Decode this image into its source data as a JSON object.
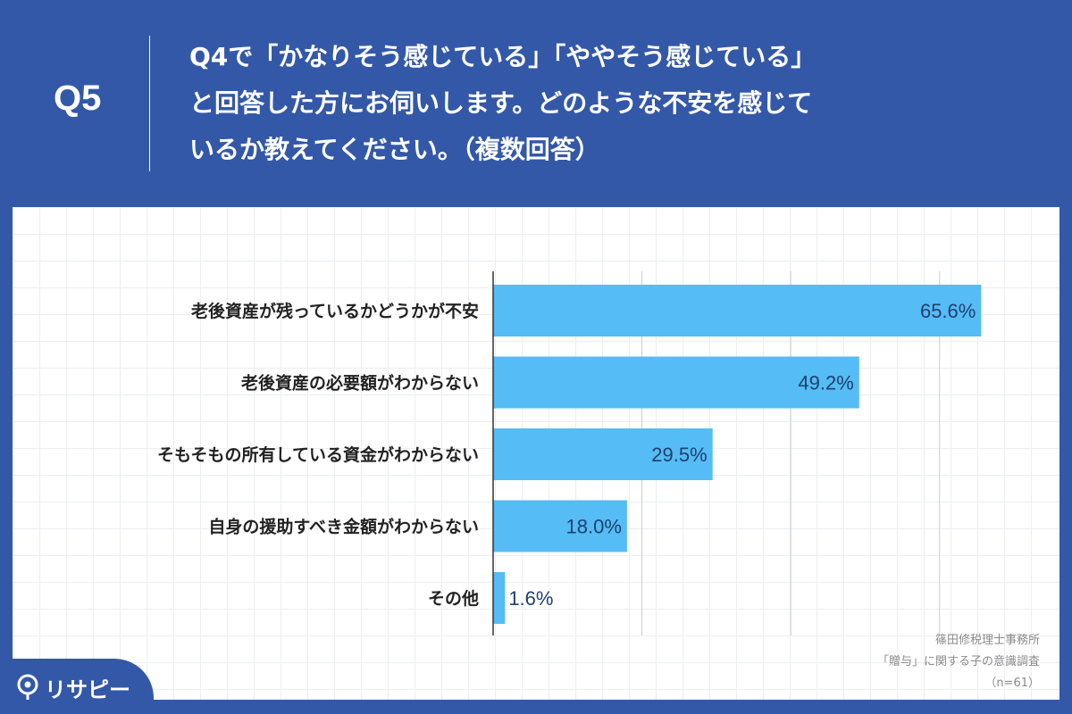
{
  "header": {
    "question_number": "Q5",
    "question_lines": [
      "Q4で「かなりそう感じている」「ややそう感じている」",
      "と回答した方にお伺いします。どのような不安を感じて",
      "いるか教えてください。（複数回答）"
    ]
  },
  "colors": {
    "background": "#3458a8",
    "bar": "#55bcf5",
    "value_text": "#1f3f6e"
  },
  "chart_data": {
    "type": "bar",
    "orientation": "horizontal",
    "categories": [
      "老後資産が残っているかどうかが不安",
      "老後資産の必要額がわからない",
      "そもそもの所有している資金がわからない",
      "自身の援助すべき金額がわからない",
      "その他"
    ],
    "values": [
      65.6,
      49.2,
      29.5,
      18.0,
      1.6
    ],
    "value_labels": [
      "65.6%",
      "49.2%",
      "29.5%",
      "18.0%",
      "1.6%"
    ],
    "xlim": [
      0,
      70
    ],
    "grid": true
  },
  "source": {
    "lines": [
      "篠田修税理士事務所",
      "「贈与」に関する子の意識調査",
      "（n=61）"
    ]
  },
  "brand": {
    "name": "リサピー",
    "icon": "lisapee-pin-icon"
  }
}
